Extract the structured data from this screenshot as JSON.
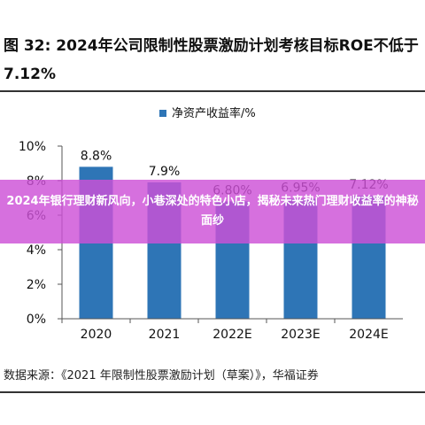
{
  "figure": {
    "title": "图 32: 2024年公司限制性股票激励计划考核目标ROE不低于7.12%",
    "source": "数据来源：《2021 年限制性股票激励计划（草案）》，华福证券"
  },
  "overlay": {
    "text": "2024年银行理财新风向，小巷深处的特色小店，揭秘未来热门理财收益率的神秘面纱"
  },
  "colors": {
    "bar": "#2e75b6",
    "overlay": "#cd50d7"
  },
  "chart_data": {
    "type": "bar",
    "categories": [
      "2020",
      "2021",
      "2022E",
      "2023E",
      "2024E"
    ],
    "series": [
      {
        "name": "净资产收益率/%",
        "values": [
          8.8,
          7.9,
          6.8,
          6.95,
          7.12
        ]
      }
    ],
    "data_labels": [
      "8.8%",
      "7.9%",
      "6.80%",
      "6.95%",
      "7.12%"
    ],
    "yticks": [
      "0%",
      "2%",
      "4%",
      "6%",
      "8%",
      "10%"
    ],
    "ylim": [
      0,
      10
    ],
    "legend_position": "top",
    "grid": false
  }
}
